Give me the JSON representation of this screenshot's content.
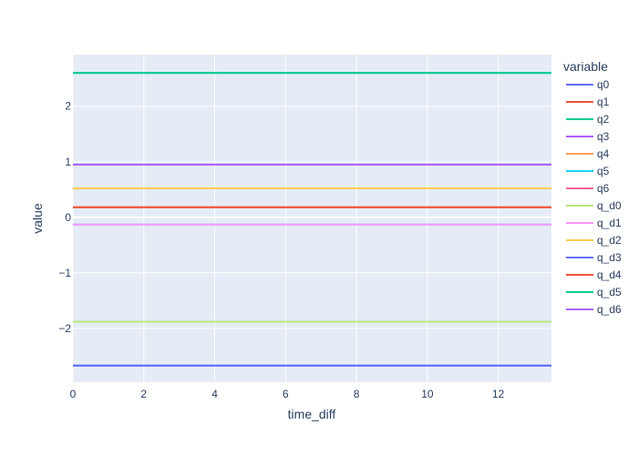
{
  "chart_data": {
    "type": "line",
    "title": "",
    "xlabel": "time_diff",
    "ylabel": "value",
    "xlim": [
      0,
      13.5
    ],
    "ylim": [
      -2.97,
      2.93
    ],
    "x_ticks": [
      0,
      2,
      4,
      6,
      8,
      10,
      12
    ],
    "x_tick_labels": [
      "0",
      "2",
      "4",
      "6",
      "8",
      "10",
      "12"
    ],
    "y_ticks": [
      -2,
      -1,
      0,
      1,
      2
    ],
    "y_tick_labels": [
      "−2",
      "−1",
      "0",
      "1",
      "2"
    ],
    "grid": true,
    "legend": {
      "title": "variable",
      "position": "right"
    },
    "x": [
      0,
      13.5
    ],
    "series": [
      {
        "name": "q0",
        "color": "#636efa",
        "values": [
          -2.67,
          -2.67
        ]
      },
      {
        "name": "q1",
        "color": "#EF553B",
        "values": [
          0.18,
          0.18
        ]
      },
      {
        "name": "q2",
        "color": "#00cc96",
        "values": [
          2.6,
          2.6
        ]
      },
      {
        "name": "q3",
        "color": "#ab63fa",
        "values": [
          0.95,
          0.95
        ]
      },
      {
        "name": "q4",
        "color": "#FFA15A",
        "values": [
          0.52,
          0.52
        ]
      },
      {
        "name": "q5",
        "color": "#19d3f3",
        "values": [
          -0.13,
          -0.13
        ]
      },
      {
        "name": "q6",
        "color": "#FF6692",
        "values": [
          -1.88,
          -1.88
        ]
      },
      {
        "name": "q_d0",
        "color": "#B6E880",
        "values": [
          -1.88,
          -1.88
        ]
      },
      {
        "name": "q_d1",
        "color": "#FF97FF",
        "values": [
          -0.13,
          -0.13
        ]
      },
      {
        "name": "q_d2",
        "color": "#FECB52",
        "values": [
          0.52,
          0.52
        ]
      },
      {
        "name": "q_d3",
        "color": "#636efa",
        "values": [
          -2.67,
          -2.67
        ]
      },
      {
        "name": "q_d4",
        "color": "#EF553B",
        "values": [
          0.18,
          0.18
        ]
      },
      {
        "name": "q_d5",
        "color": "#00cc96",
        "values": [
          2.6,
          2.6
        ]
      },
      {
        "name": "q_d6",
        "color": "#ab63fa",
        "values": [
          0.95,
          0.95
        ]
      }
    ]
  }
}
